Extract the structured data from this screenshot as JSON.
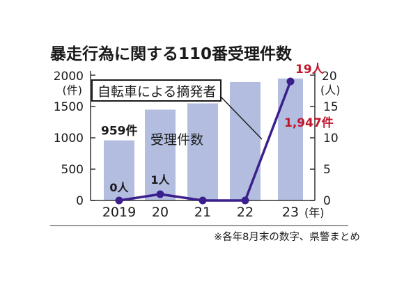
{
  "chart_data": {
    "type": "bar",
    "title": "暴走行為に関する110番受理件数",
    "categories": [
      "2019",
      "20",
      "21",
      "22",
      "23"
    ],
    "x_unit": "(年)",
    "series": [
      {
        "name": "受理件数",
        "kind": "bar",
        "axis": "left",
        "values": [
          959,
          1450,
          1550,
          1890,
          1947
        ],
        "labels": [
          "959件",
          "",
          "",
          "",
          "1,947件"
        ]
      },
      {
        "name": "自転車による摘発者",
        "kind": "line",
        "axis": "right",
        "values": [
          0,
          1,
          0,
          0,
          19
        ],
        "labels": [
          "0人",
          "1人",
          "",
          "",
          "19人"
        ]
      }
    ],
    "left_axis": {
      "unit_lines": [
        "2000",
        "(件)"
      ],
      "ticks": [
        "1500",
        "1000",
        "500",
        "0"
      ],
      "ylim": [
        0,
        2000
      ]
    },
    "right_axis": {
      "unit_lines": [
        "20",
        "(人)"
      ],
      "ticks": [
        "15",
        "10",
        "5",
        "0"
      ],
      "ylim": [
        0,
        20
      ]
    },
    "note": "※各年8月末の数字、県警まとめ",
    "colors": {
      "bar": "#b3bde0",
      "line": "#3b1f8c",
      "highlight": "#c0162c",
      "text": "#1a1a1a",
      "axis": "#333333"
    }
  }
}
